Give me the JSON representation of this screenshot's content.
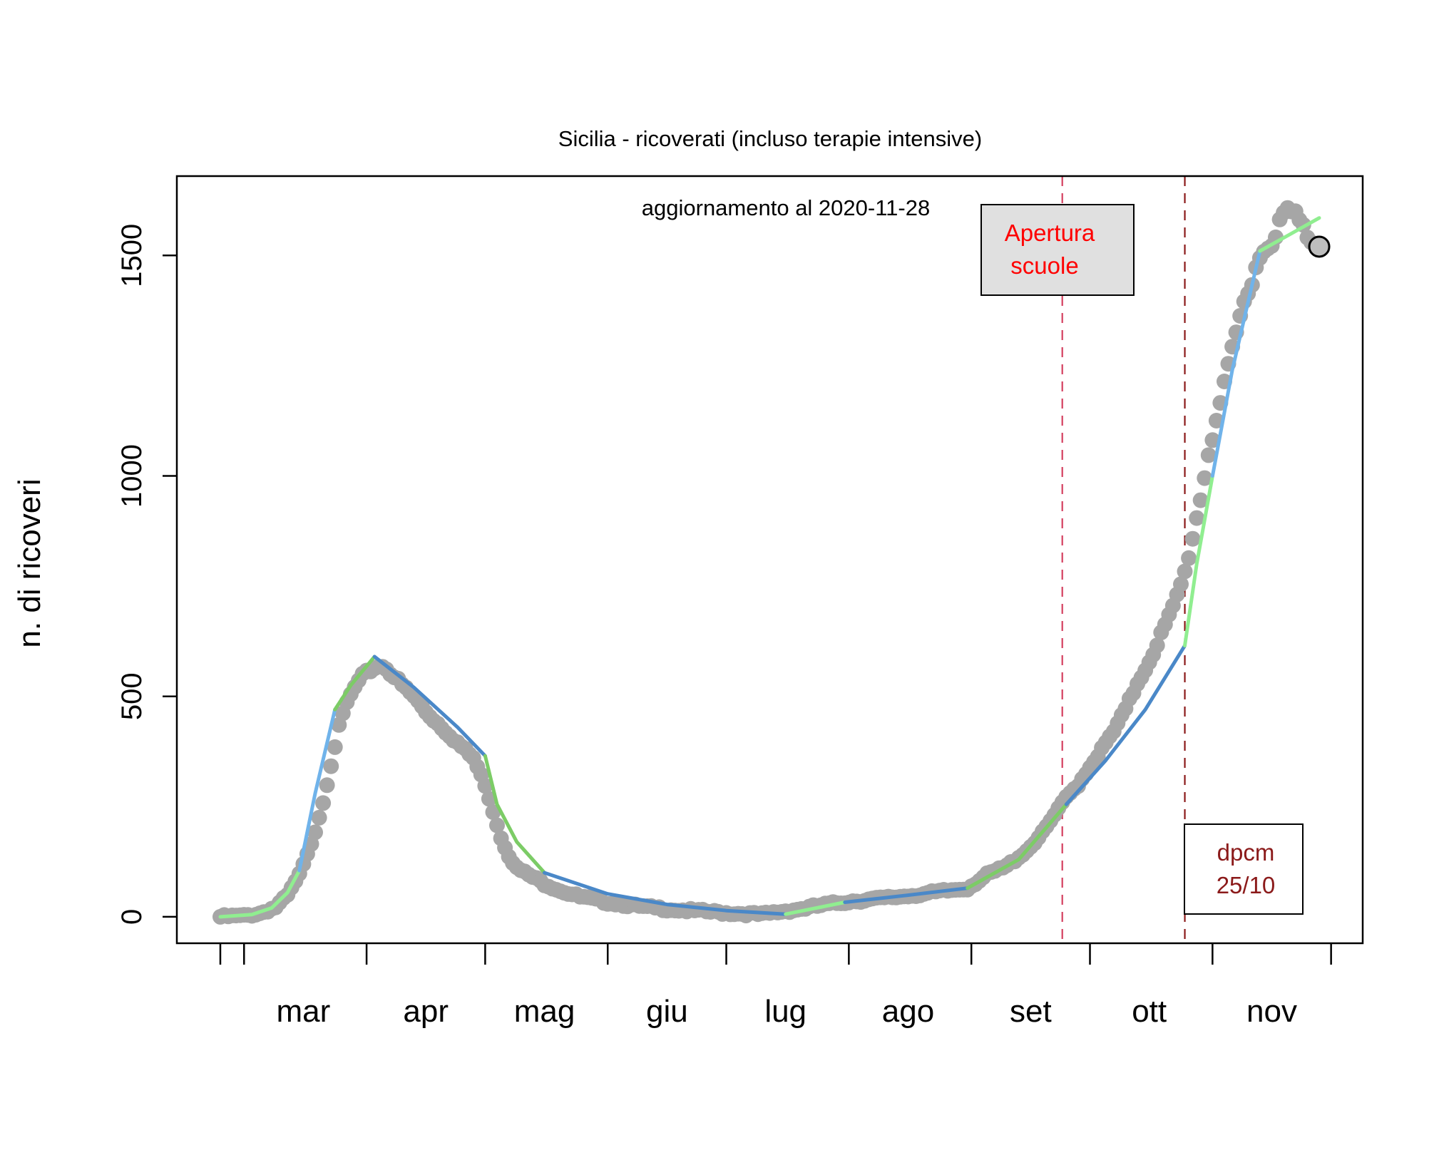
{
  "chart_data": {
    "type": "scatter",
    "title": "Sicilia - ricoverati (incluso terapie intensive)",
    "subtitle": "aggiornamento al 2020-11-28",
    "xlabel": "",
    "ylabel": "n. di ricoveri",
    "ylim": [
      -60,
      1680
    ],
    "yticks": [
      0,
      500,
      1000,
      1500
    ],
    "month_labels": [
      "mar",
      "apr",
      "mag",
      "giu",
      "lug",
      "ago",
      "set",
      "ott",
      "nov"
    ],
    "month_label_dates": [
      "2020-03-16",
      "2020-04-16",
      "2020-05-16",
      "2020-06-16",
      "2020-07-16",
      "2020-08-16",
      "2020-09-16",
      "2020-10-16",
      "2020-11-16"
    ],
    "major_ticks": [
      "2020-02-24",
      "2020-03-01",
      "2020-04-01",
      "2020-05-01",
      "2020-06-01",
      "2020-07-01",
      "2020-08-01",
      "2020-09-01",
      "2020-10-01",
      "2020-11-01",
      "2020-12-01"
    ],
    "xlim": [
      "2020-02-13",
      "2020-12-09"
    ],
    "grid": false,
    "series": [
      {
        "x": [
          "2020-02-24",
          "2020-03-01",
          "2020-03-05",
          "2020-03-09",
          "2020-03-12",
          "2020-03-15",
          "2020-03-17",
          "2020-03-19",
          "2020-03-21",
          "2020-03-23",
          "2020-03-25",
          "2020-03-27",
          "2020-03-29",
          "2020-03-31",
          "2020-04-02",
          "2020-04-04",
          "2020-04-06",
          "2020-04-08",
          "2020-04-10",
          "2020-04-13",
          "2020-04-16",
          "2020-04-20",
          "2020-04-24",
          "2020-04-28",
          "2020-05-01",
          "2020-05-03",
          "2020-05-05",
          "2020-05-07",
          "2020-05-09",
          "2020-05-12",
          "2020-05-16",
          "2020-05-20",
          "2020-05-25",
          "2020-06-01",
          "2020-06-10",
          "2020-06-20",
          "2020-07-01",
          "2020-07-10",
          "2020-07-15",
          "2020-07-20",
          "2020-07-25",
          "2020-08-01",
          "2020-08-10",
          "2020-08-20",
          "2020-08-31",
          "2020-09-05",
          "2020-09-10",
          "2020-09-15",
          "2020-09-19",
          "2020-09-22",
          "2020-09-25",
          "2020-09-28",
          "2020-10-01",
          "2020-10-04",
          "2020-10-07",
          "2020-10-10",
          "2020-10-13",
          "2020-10-16",
          "2020-10-19",
          "2020-10-22",
          "2020-10-25",
          "2020-10-27",
          "2020-10-29",
          "2020-10-31",
          "2020-11-02",
          "2020-11-04",
          "2020-11-06",
          "2020-11-08",
          "2020-11-10",
          "2020-11-12",
          "2020-11-14",
          "2020-11-16",
          "2020-11-18",
          "2020-11-20",
          "2020-11-22",
          "2020-11-24",
          "2020-11-26"
        ],
        "y": [
          0,
          2,
          8,
          22,
          48,
          95,
          140,
          195,
          260,
          345,
          430,
          485,
          520,
          545,
          560,
          570,
          565,
          545,
          525,
          500,
          465,
          430,
          395,
          360,
          300,
          240,
          180,
          140,
          110,
          95,
          75,
          60,
          45,
          33,
          22,
          15,
          9,
          5,
          12,
          18,
          26,
          35,
          42,
          52,
          65,
          95,
          115,
          150,
          190,
          230,
          270,
          300,
          340,
          380,
          420,
          470,
          530,
          580,
          640,
          700,
          780,
          860,
          950,
          1050,
          1130,
          1200,
          1280,
          1360,
          1420,
          1480,
          1510,
          1540,
          1570,
          1600,
          1590,
          1560,
          1540
        ]
      }
    ],
    "fit_segments": [
      {
        "color": "#90ee90",
        "x": [
          "2020-02-24",
          "2020-03-03",
          "2020-03-08",
          "2020-03-12",
          "2020-03-15"
        ],
        "y": [
          0,
          5,
          20,
          55,
          105
        ]
      },
      {
        "color": "#70b3ea",
        "x": [
          "2020-03-15",
          "2020-03-19",
          "2020-03-24"
        ],
        "y": [
          105,
          280,
          470
        ]
      },
      {
        "color": "#7ccc66",
        "x": [
          "2020-03-24",
          "2020-03-28",
          "2020-04-03"
        ],
        "y": [
          470,
          525,
          590
        ]
      },
      {
        "color": "#4a88c8",
        "x": [
          "2020-04-03",
          "2020-04-13",
          "2020-04-24",
          "2020-05-01"
        ],
        "y": [
          590,
          520,
          430,
          365
        ]
      },
      {
        "color": "#7ccc66",
        "x": [
          "2020-05-01",
          "2020-05-04",
          "2020-05-09",
          "2020-05-16"
        ],
        "y": [
          365,
          255,
          170,
          100
        ]
      },
      {
        "color": "#4a88c8",
        "x": [
          "2020-05-16",
          "2020-06-01",
          "2020-06-16",
          "2020-07-01",
          "2020-07-16"
        ],
        "y": [
          100,
          52,
          28,
          14,
          6
        ]
      },
      {
        "color": "#90ee90",
        "x": [
          "2020-07-16",
          "2020-07-31"
        ],
        "y": [
          6,
          33
        ]
      },
      {
        "color": "#4a88c8",
        "x": [
          "2020-07-31",
          "2020-08-15",
          "2020-08-31"
        ],
        "y": [
          33,
          48,
          65
        ]
      },
      {
        "color": "#7ccc66",
        "x": [
          "2020-08-31",
          "2020-09-13",
          "2020-09-25"
        ],
        "y": [
          65,
          130,
          255
        ]
      },
      {
        "color": "#4a88c8",
        "x": [
          "2020-09-25",
          "2020-10-05",
          "2020-10-15",
          "2020-10-25"
        ],
        "y": [
          255,
          355,
          470,
          615
        ]
      },
      {
        "color": "#90ee90",
        "x": [
          "2020-10-25",
          "2020-10-28",
          "2020-11-01"
        ],
        "y": [
          615,
          800,
          1000
        ]
      },
      {
        "color": "#70b3ea",
        "x": [
          "2020-11-01",
          "2020-11-06",
          "2020-11-13"
        ],
        "y": [
          1000,
          1240,
          1510
        ]
      },
      {
        "color": "#90ee90",
        "x": [
          "2020-11-13",
          "2020-11-20",
          "2020-11-28"
        ],
        "y": [
          1510,
          1545,
          1585
        ]
      }
    ],
    "last_point": {
      "x": "2020-11-28",
      "y": 1520
    },
    "vlines": [
      {
        "x": "2020-09-24",
        "color": "#d44060",
        "label_lines": [
          "Apertura",
          "scuole"
        ]
      },
      {
        "x": "2020-10-25",
        "color": "#8b1a1a",
        "label_lines": [
          "dpcm",
          "25/10"
        ]
      }
    ],
    "colors": {
      "points": "#a6a6a6",
      "box_fill": "#e0e0e0",
      "label_red": "#ff0000",
      "label_dark": "#8b1a1a"
    }
  }
}
